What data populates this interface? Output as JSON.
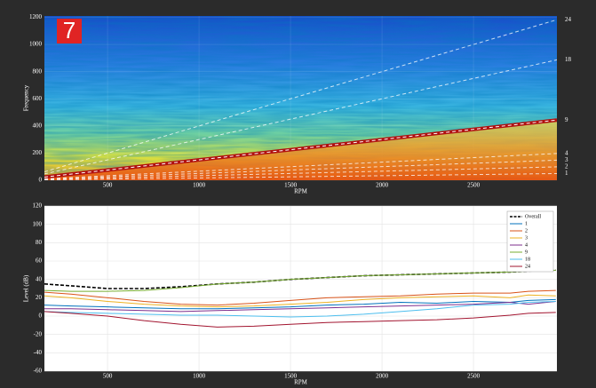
{
  "badge": "7",
  "chart_data": [
    {
      "type": "spectrogram",
      "xlabel": "RPM",
      "ylabel": "Frequency",
      "xlim": [
        155,
        2956
      ],
      "ylim": [
        0,
        1210
      ],
      "xticks": [
        500,
        1000,
        1500,
        2000,
        2500
      ],
      "yticks": [
        0,
        200,
        400,
        600,
        800,
        1000,
        1200
      ],
      "orders": [
        24,
        18,
        9,
        4,
        3,
        2,
        1
      ],
      "grid": true
    },
    {
      "type": "line",
      "xlabel": "RPM",
      "ylabel": "Level (dB)",
      "xlim": [
        155,
        2956
      ],
      "ylim": [
        -60,
        120
      ],
      "xticks": [
        500,
        1000,
        1500,
        2000,
        2500
      ],
      "yticks": [
        -60,
        -40,
        -20,
        0,
        20,
        40,
        60,
        80,
        100,
        120
      ],
      "grid": true,
      "legend": "upper-right",
      "x": [
        155,
        300,
        500,
        700,
        900,
        1100,
        1300,
        1500,
        1700,
        1900,
        2100,
        2300,
        2500,
        2700,
        2800,
        2950
      ],
      "series": [
        {
          "name": "Overall",
          "color": "#000000",
          "dash": true,
          "values": [
            35,
            33,
            30,
            30,
            32,
            35,
            37,
            40,
            42,
            44,
            45,
            46,
            47,
            48,
            49,
            50
          ]
        },
        {
          "name": "1",
          "color": "#0072bd",
          "values": [
            12,
            11,
            10,
            9,
            8,
            8,
            9,
            10,
            12,
            13,
            15,
            14,
            16,
            15,
            17,
            18
          ]
        },
        {
          "name": "2",
          "color": "#d95319",
          "values": [
            26,
            24,
            20,
            16,
            13,
            12,
            14,
            17,
            20,
            21,
            22,
            24,
            25,
            25,
            27,
            28
          ]
        },
        {
          "name": "3",
          "color": "#edb120",
          "values": [
            22,
            20,
            16,
            13,
            11,
            10,
            11,
            13,
            15,
            18,
            20,
            21,
            22,
            20,
            23,
            22
          ]
        },
        {
          "name": "4",
          "color": "#7e2f8e",
          "values": [
            8,
            8,
            7,
            6,
            5,
            6,
            7,
            8,
            9,
            10,
            11,
            12,
            13,
            15,
            13,
            16
          ]
        },
        {
          "name": "9",
          "color": "#77ac30",
          "values": [
            28,
            27,
            27,
            28,
            31,
            35,
            37,
            40,
            42,
            44,
            45,
            46,
            47,
            48,
            49,
            50
          ]
        },
        {
          "name": "18",
          "color": "#4dbeee",
          "values": [
            5,
            4,
            3,
            2,
            1,
            1,
            0,
            -1,
            0,
            2,
            5,
            8,
            12,
            13,
            15,
            16
          ]
        },
        {
          "name": "24",
          "color": "#a2142f",
          "values": [
            5,
            3,
            0,
            -5,
            -9,
            -12,
            -11,
            -9,
            -7,
            -6,
            -5,
            -4,
            -2,
            1,
            3,
            4
          ]
        }
      ]
    }
  ]
}
